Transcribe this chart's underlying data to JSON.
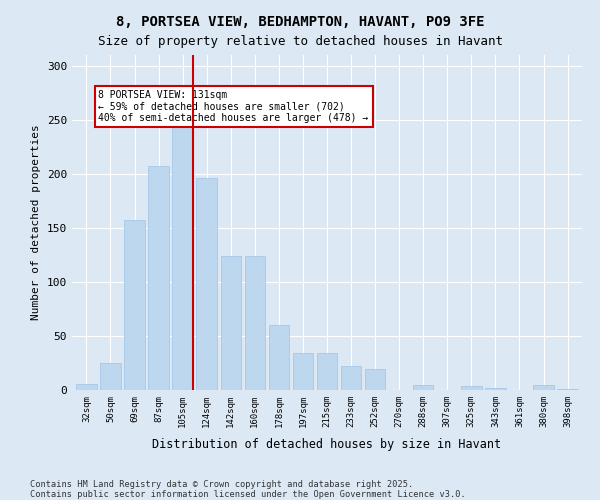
{
  "title_line1": "8, PORTSEA VIEW, BEDHAMPTON, HAVANT, PO9 3FE",
  "title_line2": "Size of property relative to detached houses in Havant",
  "xlabel": "Distribution of detached houses by size in Havant",
  "ylabel": "Number of detached properties",
  "categories": [
    "32sqm",
    "50sqm",
    "69sqm",
    "87sqm",
    "105sqm",
    "124sqm",
    "142sqm",
    "160sqm",
    "178sqm",
    "197sqm",
    "215sqm",
    "233sqm",
    "252sqm",
    "270sqm",
    "288sqm",
    "307sqm",
    "325sqm",
    "343sqm",
    "361sqm",
    "380sqm",
    "398sqm"
  ],
  "values": [
    6,
    25,
    157,
    207,
    252,
    196,
    124,
    124,
    60,
    34,
    34,
    22,
    19,
    0,
    5,
    0,
    4,
    2,
    0,
    5,
    1
  ],
  "bar_color": "#bdd7ee",
  "bar_edge_color": "#9dc3e6",
  "property_size_sqm": 131,
  "property_bar_index": 4,
  "annotation_text": "8 PORTSEA VIEW: 131sqm\n← 59% of detached houses are smaller (702)\n40% of semi-detached houses are larger (478) →",
  "annotation_box_color": "#ffffff",
  "annotation_box_edge_color": "#cc0000",
  "vline_color": "#cc0000",
  "background_color": "#dce9f5",
  "plot_background_color": "#dce9f5",
  "grid_color": "#ffffff",
  "footer_text": "Contains HM Land Registry data © Crown copyright and database right 2025.\nContains public sector information licensed under the Open Government Licence v3.0.",
  "ylim": [
    0,
    310
  ],
  "yticks": [
    0,
    50,
    100,
    150,
    200,
    250,
    300
  ]
}
